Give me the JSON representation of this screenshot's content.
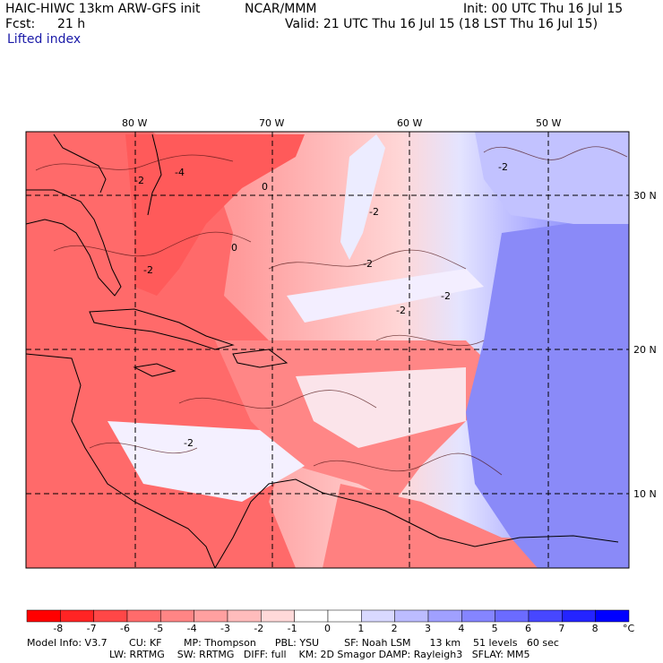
{
  "header": {
    "model": "HAIC-HIWC 13km ARW-GFS init",
    "agency": "NCAR/MMM",
    "init": "Init: 00 UTC Thu 16 Jul 15",
    "fcst_label": "Fcst:",
    "fcst_value": "21 h",
    "valid": "Valid: 21 UTC Thu 16 Jul 15 (18 LST Thu 16 Jul 15)",
    "field": "Lifted index"
  },
  "map": {
    "lon_labels": [
      "80 W",
      "70 W",
      "60 W",
      "50 W"
    ],
    "lat_labels": [
      "30 N",
      "20 N",
      "10 N"
    ],
    "contour_labels": [
      "-4",
      "-2",
      "0",
      "-2",
      "-2",
      "-2",
      "-2",
      "-2",
      "-2",
      "-2",
      "0"
    ],
    "colors": {
      "warm": "#e83c3c",
      "cool": "#4a5ee6",
      "neutral": "#f7f2f6",
      "border": "#000000"
    }
  },
  "colorbar": {
    "ticks": [
      "-8",
      "-7",
      "-6",
      "-5",
      "-4",
      "-3",
      "-2",
      "-1",
      "0",
      "1",
      "2",
      "3",
      "4",
      "5",
      "6",
      "7",
      "8"
    ],
    "unit": "°C",
    "colors": [
      "#ff0000",
      "#ff2424",
      "#ff4747",
      "#ff6b6b",
      "#ff8585",
      "#ffa0a0",
      "#ffbcbc",
      "#ffd9d9",
      "#ffffff",
      "#ffffff",
      "#d9d9ff",
      "#bcbcff",
      "#a0a0ff",
      "#8585ff",
      "#6b6bff",
      "#4747ff",
      "#2424ff",
      "#0000ff"
    ]
  },
  "footer": {
    "line1": "Model Info: V3.7       CU: KF       MP: Thompson      PBL: YSU        SF: Noah LSM      13 km    51 levels   60 sec",
    "line2": "LW: RRTMG    SW: RRTMG   DIFF: full    KM: 2D Smagor DAMP: Rayleigh3   SFLAY: MM5"
  }
}
